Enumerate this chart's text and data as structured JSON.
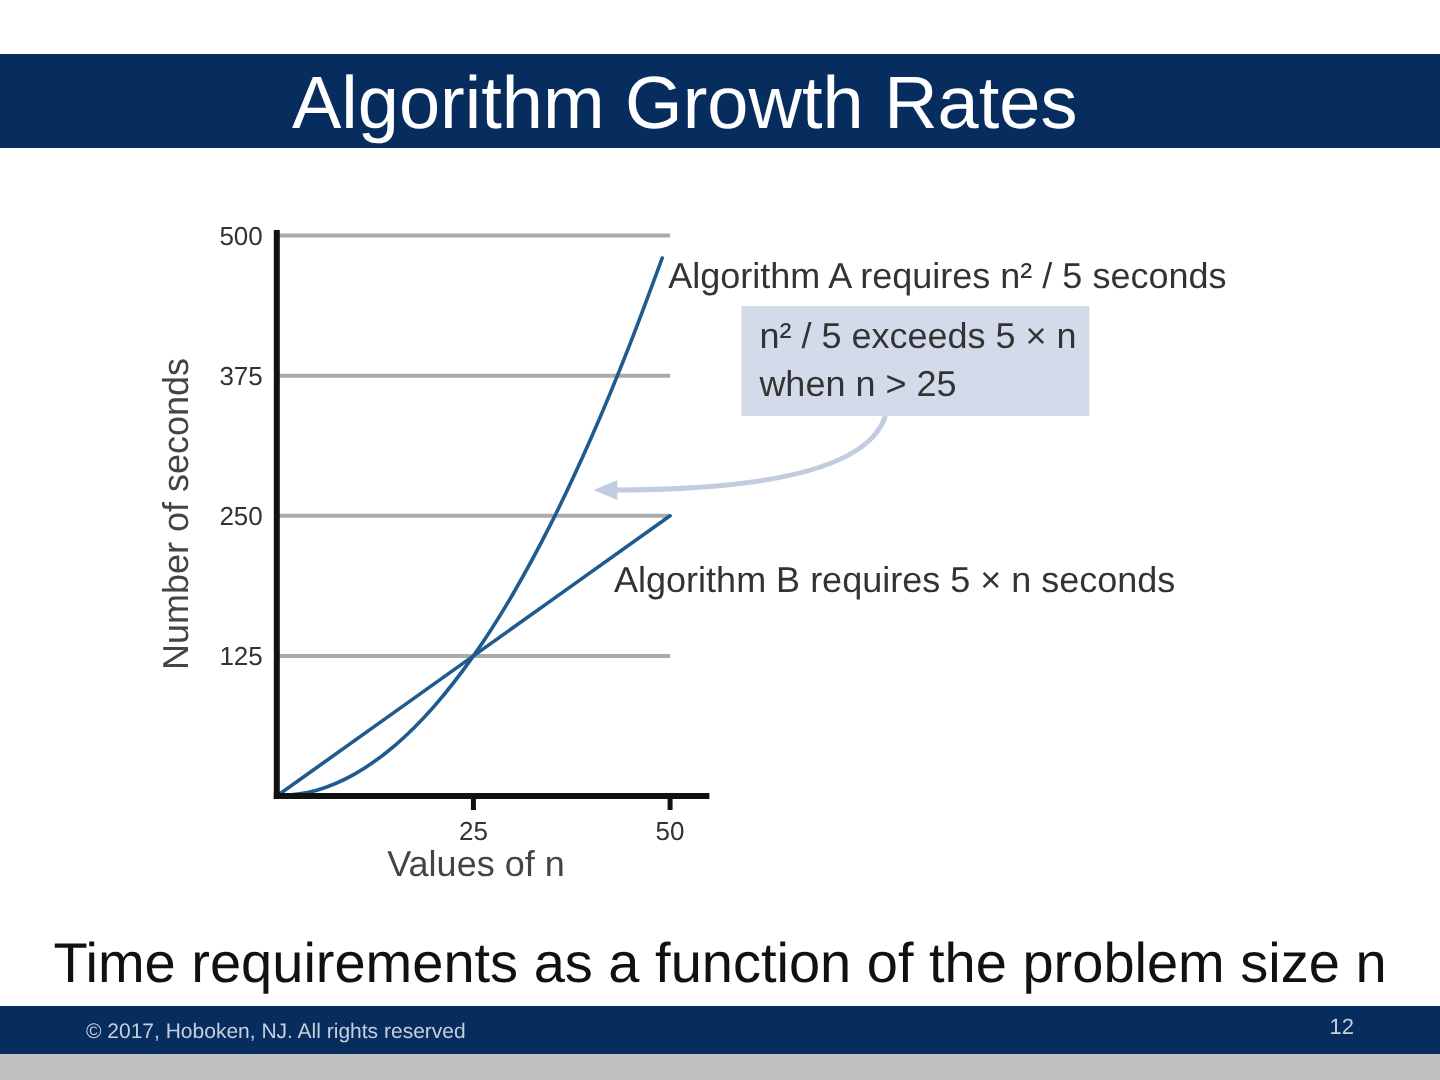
{
  "chart_data": {
    "type": "line",
    "title": "Algorithm Growth Rates",
    "xlabel": "Values of n",
    "ylabel": "Number of seconds",
    "x": [
      0,
      5,
      10,
      15,
      20,
      25,
      30,
      35,
      40,
      45,
      49
    ],
    "series": [
      {
        "name": "Algorithm A requires n² / 5 seconds",
        "color": "#1f5b8e",
        "values": [
          0,
          5,
          20,
          45,
          80,
          125,
          180,
          245,
          320,
          405,
          480
        ]
      },
      {
        "name": "Algorithm B requires 5 × n seconds",
        "color": "#1f5b8e",
        "x": [
          0,
          25,
          50
        ],
        "values": [
          0,
          125,
          250
        ]
      }
    ],
    "xlim": [
      0,
      55
    ],
    "ylim": [
      0,
      505
    ],
    "xticks": [
      25,
      50
    ],
    "yticks": [
      125,
      250,
      375,
      500
    ],
    "grid": "y",
    "line_style": "solid",
    "annotations": [
      "n² / 5 exceeds 5 × n\nwhen n > 25",
      "Time requirements as a function of the problem size n",
      "© 2017, Hoboken, NJ. All rights reserved",
      "12"
    ]
  }
}
